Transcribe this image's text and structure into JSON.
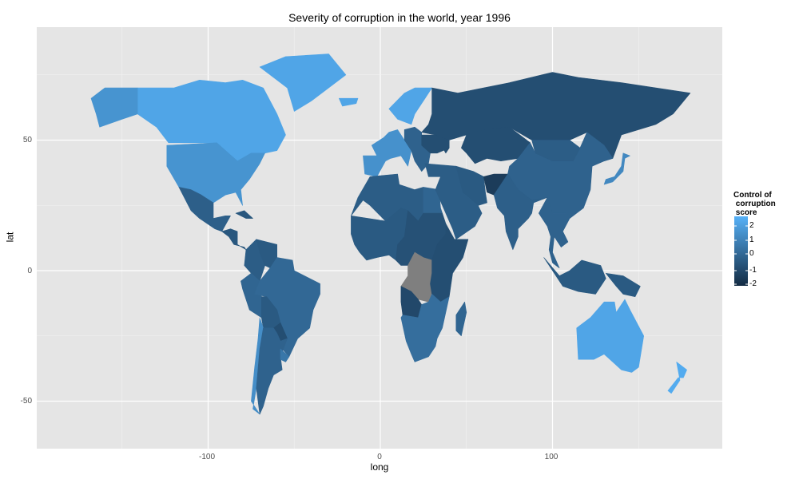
{
  "title": "Severity of corruption in the world, year 1996",
  "x_axis": {
    "label": "long",
    "ticks": [
      "-100",
      "0",
      "100"
    ]
  },
  "y_axis": {
    "label": "lat",
    "ticks": [
      "50",
      "0",
      "-50"
    ]
  },
  "legend": {
    "title_lines": [
      "Control of",
      "corruption",
      "score"
    ],
    "ticks": [
      "2",
      "1",
      "0",
      "-1",
      "-2"
    ],
    "color_high": "#56B1F7",
    "color_low": "#132B43",
    "na_color": "#7F7F7F"
  },
  "panel": {
    "background": "#E5E5E5",
    "grid": true
  },
  "map": {
    "variable": "Control of corruption score",
    "year": 1996,
    "regions": [
      {
        "name": "Canada",
        "score": 2.0
      },
      {
        "name": "United States",
        "score": 1.4
      },
      {
        "name": "Alaska",
        "score": 1.4
      },
      {
        "name": "Mexico",
        "score": -0.4
      },
      {
        "name": "Cuba",
        "score": -0.7
      },
      {
        "name": "Greenland",
        "score": 2.0
      },
      {
        "name": "Iceland",
        "score": 2.0
      },
      {
        "name": "Central America",
        "score": -0.7
      },
      {
        "name": "Colombia",
        "score": -0.5
      },
      {
        "name": "Venezuela",
        "score": -0.6
      },
      {
        "name": "Peru",
        "score": -0.2
      },
      {
        "name": "Brazil",
        "score": -0.1
      },
      {
        "name": "Bolivia",
        "score": -0.6
      },
      {
        "name": "Paraguay",
        "score": -1.0
      },
      {
        "name": "Chile",
        "score": 1.2
      },
      {
        "name": "Argentina",
        "score": -0.3
      },
      {
        "name": "Uruguay",
        "score": 0.4
      },
      {
        "name": "Scandinavia",
        "score": 2.0
      },
      {
        "name": "Western Europe",
        "score": 1.3
      },
      {
        "name": "Eastern Europe",
        "score": -0.3
      },
      {
        "name": "Russia",
        "score": -1.0
      },
      {
        "name": "Ukraine",
        "score": -1.0
      },
      {
        "name": "Kazakhstan",
        "score": -1.0
      },
      {
        "name": "China",
        "score": -0.3
      },
      {
        "name": "Mongolia",
        "score": -0.5
      },
      {
        "name": "North Africa",
        "score": -0.5
      },
      {
        "name": "Egypt",
        "score": -0.2
      },
      {
        "name": "West Africa",
        "score": -0.6
      },
      {
        "name": "Central Africa",
        "score": -0.9
      },
      {
        "name": "DR Congo",
        "score": null
      },
      {
        "name": "East Africa",
        "score": -1.0
      },
      {
        "name": "Angola",
        "score": -1.2
      },
      {
        "name": "Southern Africa",
        "score": 0.1
      },
      {
        "name": "Madagascar",
        "score": -0.2
      },
      {
        "name": "Middle East",
        "score": -0.5
      },
      {
        "name": "Iran",
        "score": -0.6
      },
      {
        "name": "Afghanistan",
        "score": -1.6
      },
      {
        "name": "India",
        "score": -0.4
      },
      {
        "name": "Southeast Asia",
        "score": -0.3
      },
      {
        "name": "Indonesia",
        "score": -0.6
      },
      {
        "name": "Papua New Guinea",
        "score": -0.6
      },
      {
        "name": "Japan",
        "score": 1.0
      },
      {
        "name": "Australia",
        "score": 2.0
      },
      {
        "name": "New Zealand",
        "score": 2.2
      }
    ]
  }
}
